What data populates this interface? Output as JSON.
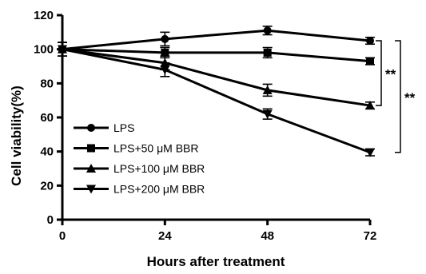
{
  "chart_data": {
    "type": "line",
    "xlabel": "Hours after treatment",
    "ylabel": "Cell viability(%)",
    "x": [
      0,
      24,
      48,
      72
    ],
    "xticks": [
      0,
      24,
      48,
      72
    ],
    "yticks": [
      0,
      20,
      40,
      60,
      80,
      100,
      120
    ],
    "xlim": [
      0,
      72
    ],
    "ylim": [
      0,
      120
    ],
    "grid": false,
    "legend_position": "bottom-left",
    "series": [
      {
        "name": "LPS",
        "marker": "circle",
        "values": [
          100,
          106,
          111,
          105
        ],
        "errors": [
          4,
          4,
          2.5,
          2
        ]
      },
      {
        "name": "LPS+50 μM BBR",
        "marker": "square",
        "values": [
          100,
          98,
          98,
          93
        ],
        "errors": [
          4,
          3,
          3,
          2
        ]
      },
      {
        "name": "LPS+100 μM BBR",
        "marker": "triangle-up",
        "values": [
          100,
          92,
          76,
          67
        ],
        "errors": [
          4,
          4,
          3.5,
          2
        ]
      },
      {
        "name": "LPS+200 μM BBR",
        "marker": "triangle-down",
        "values": [
          100,
          88,
          62,
          39.5
        ],
        "errors": [
          4,
          4,
          3,
          2
        ]
      }
    ],
    "annotations": [
      {
        "text": "**",
        "y_top": 105,
        "y_bottom": 67
      },
      {
        "text": "**",
        "y_top": 105,
        "y_bottom": 39.5
      }
    ]
  }
}
